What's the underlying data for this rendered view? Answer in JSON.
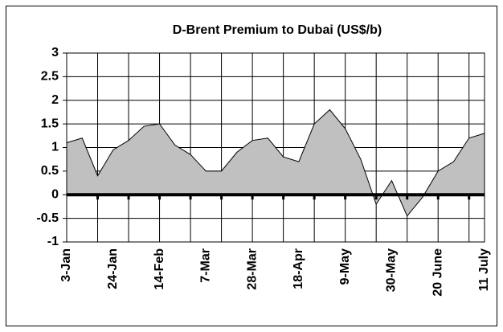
{
  "chart_data": {
    "type": "area",
    "title": "D-Brent Premium to Dubai (US$/b)",
    "categories": [
      "3-Jan",
      null,
      null,
      "24-Jan",
      null,
      null,
      "14-Feb",
      null,
      null,
      "7-Mar",
      null,
      null,
      "28-Mar",
      null,
      null,
      "18-Apr",
      null,
      null,
      "9-May",
      null,
      null,
      "30-May",
      null,
      null,
      "20 June",
      null,
      null,
      "11 July"
    ],
    "values": [
      1.1,
      1.2,
      0.4,
      0.95,
      1.15,
      1.45,
      1.5,
      1.05,
      0.85,
      0.5,
      0.5,
      0.9,
      1.15,
      1.2,
      0.8,
      0.7,
      1.5,
      1.8,
      1.4,
      0.75,
      -0.2,
      0.3,
      -0.45,
      -0.05,
      0.5,
      0.7,
      1.2,
      1.3
    ],
    "color": "#c0c0c0",
    "ylim": [
      -1,
      3
    ],
    "yticks": [
      -1,
      -0.5,
      0,
      0.5,
      1,
      1.5,
      2,
      2.5,
      3
    ],
    "grid": true
  }
}
